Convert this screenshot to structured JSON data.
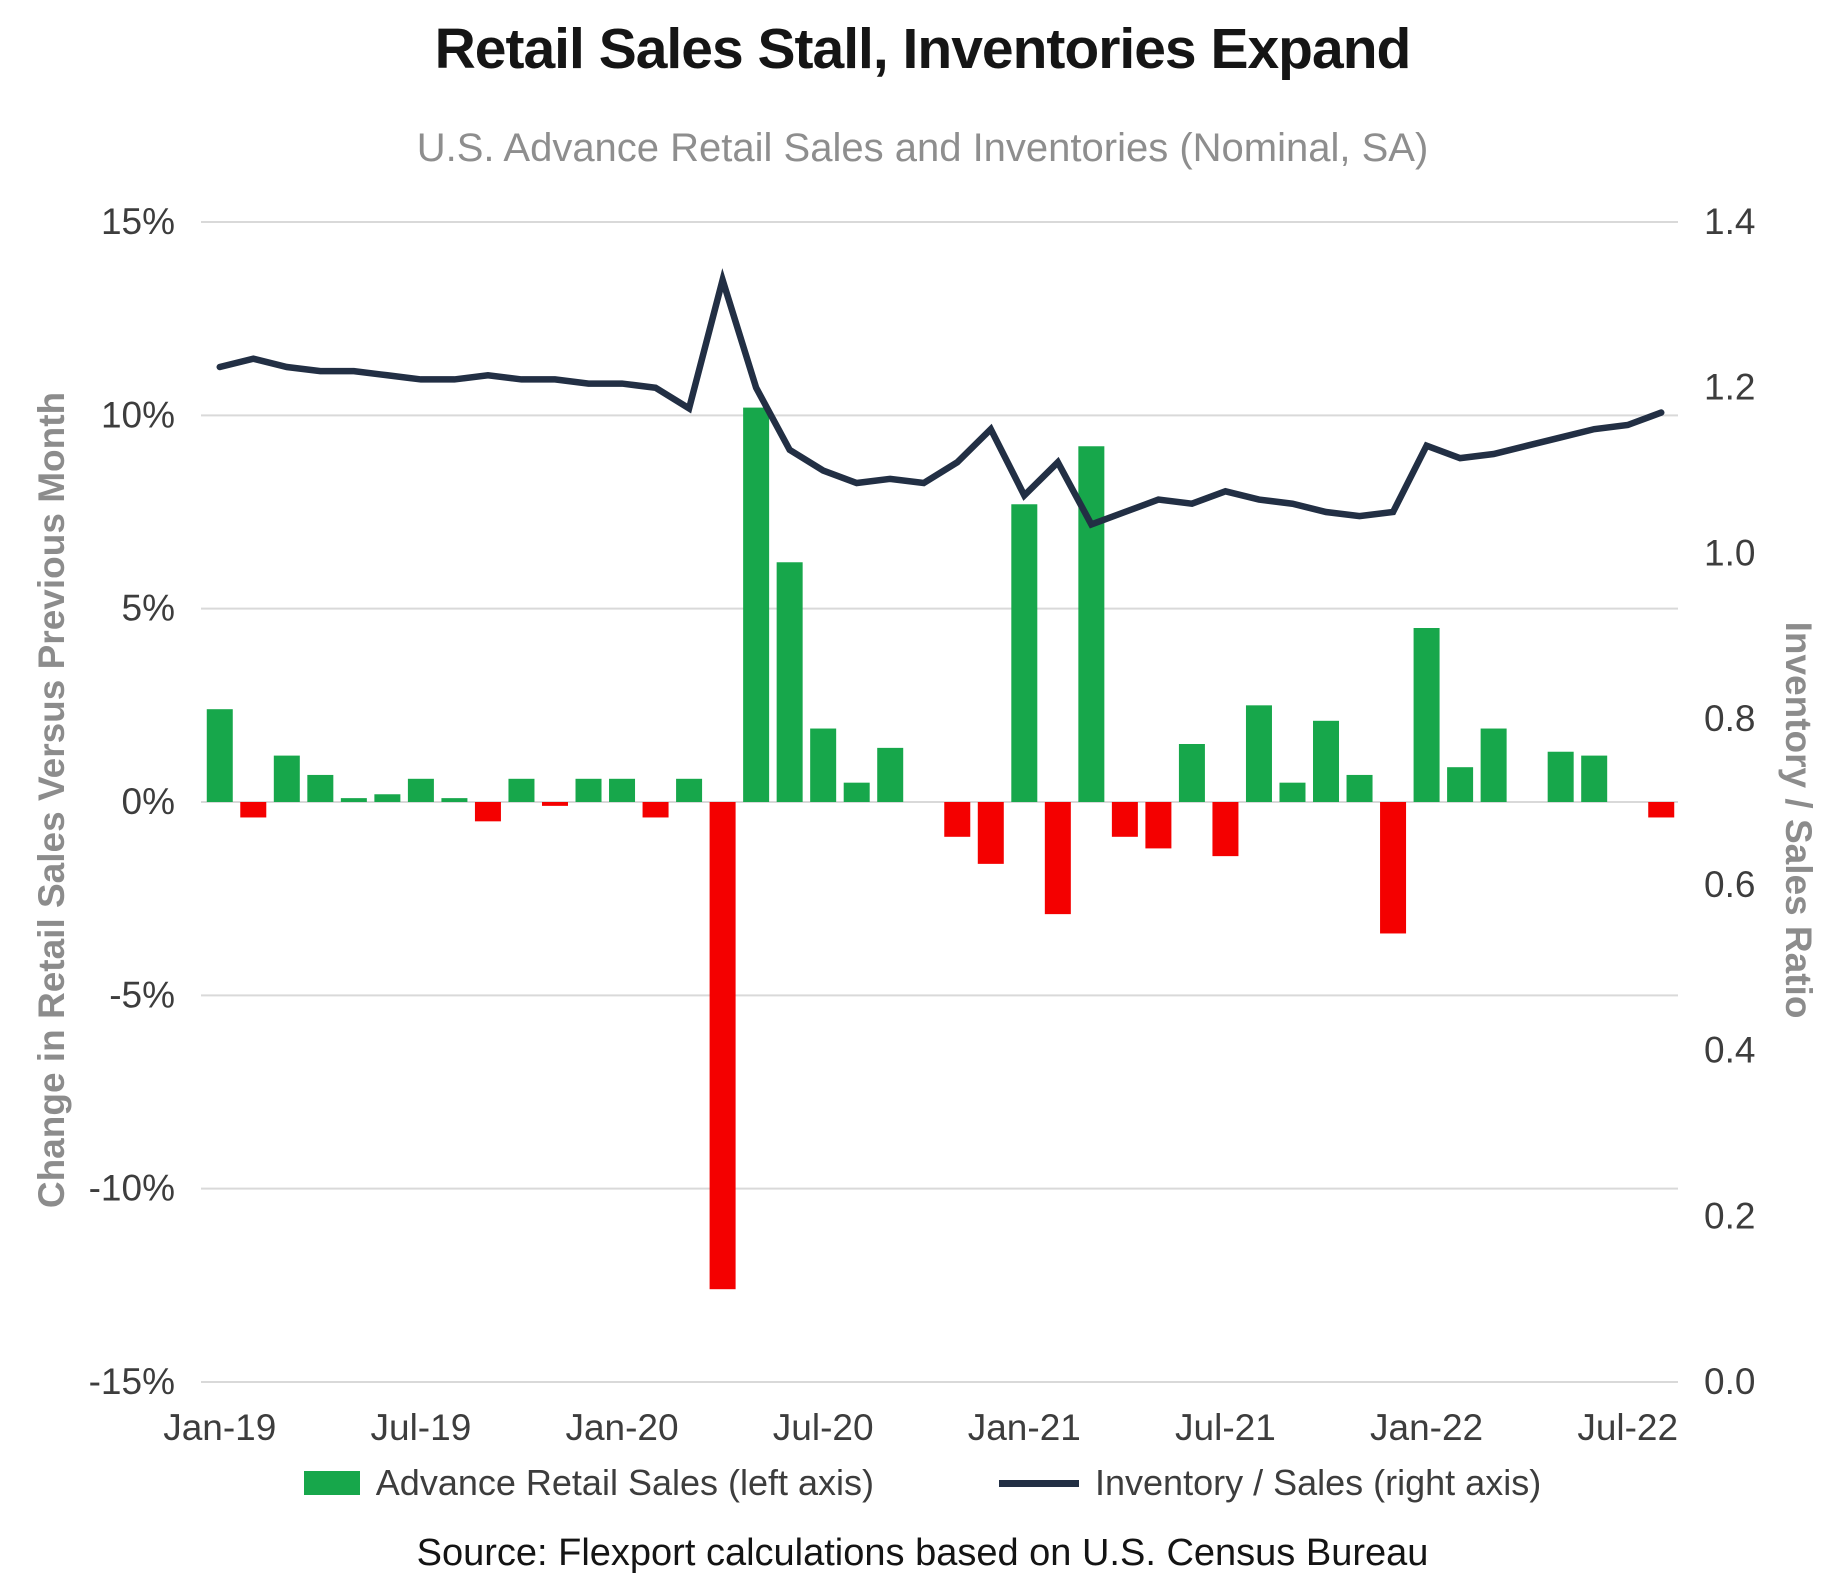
{
  "title": "Retail Sales Stall, Inventories Expand",
  "subtitle": "U.S. Advance Retail Sales and Inventories (Nominal, SA)",
  "source": "Source: Flexport calculations based on U.S. Census Bureau",
  "colors": {
    "bar_positive": "#17a74b",
    "bar_negative": "#f40000",
    "line": "#222f44",
    "grid": "#d9d9d9",
    "tick_label": "#3d3d3d"
  },
  "legend": {
    "bar_label": "Advance Retail Sales (left axis)",
    "line_label": "Inventory / Sales (right axis)"
  },
  "chart_data": {
    "type": "bar+line",
    "title": "Retail Sales Stall, Inventories Expand",
    "subtitle": "U.S. Advance Retail Sales and Inventories (Nominal, SA)",
    "x": [
      "Jan-19",
      "Feb-19",
      "Mar-19",
      "Apr-19",
      "May-19",
      "Jun-19",
      "Jul-19",
      "Aug-19",
      "Sep-19",
      "Oct-19",
      "Nov-19",
      "Dec-19",
      "Jan-20",
      "Feb-20",
      "Mar-20",
      "Apr-20",
      "May-20",
      "Jun-20",
      "Jul-20",
      "Aug-20",
      "Sep-20",
      "Oct-20",
      "Nov-20",
      "Dec-20",
      "Jan-21",
      "Feb-21",
      "Mar-21",
      "Apr-21",
      "May-21",
      "Jun-21",
      "Jul-21",
      "Aug-21",
      "Sep-21",
      "Oct-21",
      "Nov-21",
      "Dec-21",
      "Jan-22",
      "Feb-22",
      "Mar-22",
      "Apr-22",
      "May-22",
      "Jun-22",
      "Jul-22",
      "Aug-22"
    ],
    "x_tick_every": 6,
    "series": [
      {
        "name": "Advance Retail Sales (left axis)",
        "type": "bar",
        "axis": "left",
        "unit": "% change vs previous month",
        "values": [
          2.4,
          -0.4,
          1.2,
          0.7,
          0.1,
          0.2,
          0.6,
          0.1,
          -0.5,
          0.6,
          -0.1,
          0.6,
          0.6,
          -0.4,
          0.6,
          -12.6,
          10.2,
          6.2,
          1.9,
          0.5,
          1.4,
          0,
          -0.9,
          -1.6,
          7.7,
          -2.9,
          9.2,
          -0.9,
          -1.2,
          1.5,
          -1.4,
          2.5,
          0.5,
          2.1,
          0.7,
          -3.4,
          4.5,
          0.9,
          1.9,
          0,
          1.3,
          1.2,
          0,
          -0.4
        ]
      },
      {
        "name": "Inventory / Sales (right axis)",
        "type": "line",
        "axis": "right",
        "unit": "ratio",
        "values": [
          1.225,
          1.235,
          1.225,
          1.22,
          1.22,
          1.215,
          1.21,
          1.21,
          1.215,
          1.21,
          1.21,
          1.205,
          1.205,
          1.2,
          1.175,
          1.33,
          1.2,
          1.125,
          1.1,
          1.085,
          1.09,
          1.085,
          1.11,
          1.15,
          1.07,
          1.11,
          1.035,
          1.05,
          1.065,
          1.06,
          1.075,
          1.065,
          1.06,
          1.05,
          1.045,
          1.05,
          1.13,
          1.115,
          1.12,
          1.13,
          1.14,
          1.15,
          1.155,
          1.17
        ]
      }
    ],
    "left_axis": {
      "label": "Change in Retail Sales Versus Previous Month",
      "min": -15,
      "max": 15,
      "ticks": [
        15,
        10,
        5,
        0,
        -5,
        -10,
        -15
      ],
      "tick_labels": [
        "15%",
        "10%",
        "5%",
        "0%",
        "-5%",
        "-10%",
        "-15%"
      ]
    },
    "right_axis": {
      "label": "Inventory / Sales Ratio",
      "min": 0,
      "max": 1.4,
      "ticks": [
        1.4,
        1.2,
        1.0,
        0.8,
        0.6,
        0.4,
        0.2,
        0.0
      ],
      "tick_labels": [
        "1.4",
        "1.2",
        "1.0",
        "0.8",
        "0.6",
        "0.4",
        "0.2",
        "0.0"
      ]
    },
    "grid": "horizontal",
    "legend_position": "bottom"
  }
}
